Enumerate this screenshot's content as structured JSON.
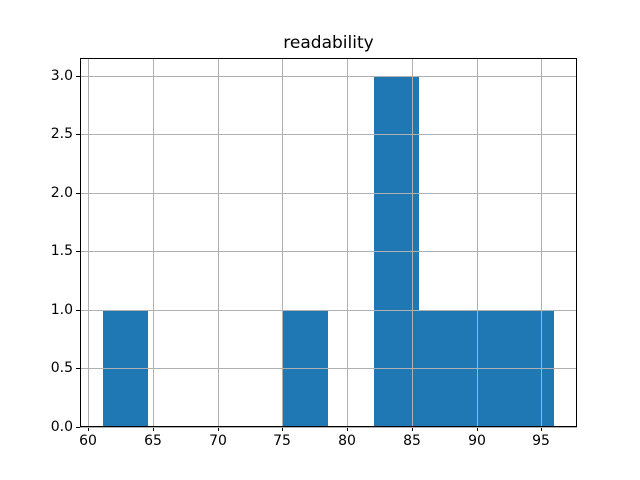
{
  "colors": {
    "bar": "#1f77b4",
    "grid": "#b0b0b0",
    "spine": "#000000",
    "background": "#ffffff",
    "text": "#000000"
  },
  "chart_data": {
    "type": "histogram",
    "title": "readability",
    "xlabel": "",
    "ylabel": "",
    "bin_edges": [
      61.1,
      64.59,
      68.08,
      71.57,
      75.06,
      78.55,
      82.04,
      85.53,
      89.02,
      92.51,
      96.0
    ],
    "counts": [
      1,
      0,
      0,
      0,
      1,
      0,
      3,
      1,
      1,
      1
    ],
    "xlim": [
      59.36,
      97.75
    ],
    "ylim": [
      0,
      3.15
    ],
    "x_ticks": [
      60,
      65,
      70,
      75,
      80,
      85,
      90,
      95
    ],
    "x_tick_labels": [
      "60",
      "65",
      "70",
      "75",
      "80",
      "85",
      "90",
      "95"
    ],
    "y_ticks": [
      0.0,
      0.5,
      1.0,
      1.5,
      2.0,
      2.5,
      3.0
    ],
    "y_tick_labels": [
      "0.0",
      "0.5",
      "1.0",
      "1.5",
      "2.0",
      "2.5",
      "3.0"
    ],
    "grid": true,
    "legend": null
  }
}
